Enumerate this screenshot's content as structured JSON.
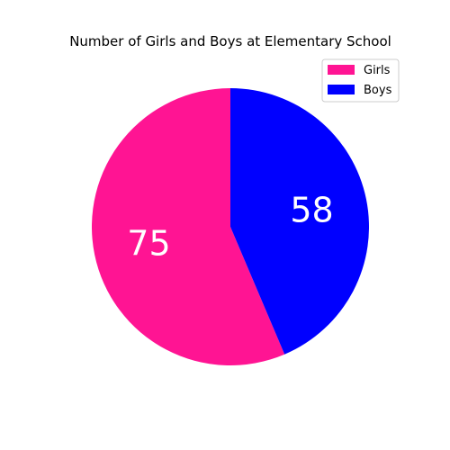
{
  "chart_data": {
    "type": "pie",
    "title": "Number of Girls and Boys at Elementary School",
    "labels": [
      "Girls",
      "Boys"
    ],
    "values": [
      75,
      58
    ],
    "colors": [
      "#ff1493",
      "#0000ff"
    ],
    "slice_label_color": "#ffffff",
    "start_angle_deg": 90,
    "direction": "counterclockwise",
    "legend": {
      "placement": "upper-right",
      "entries": [
        "Girls",
        "Boys"
      ]
    }
  }
}
